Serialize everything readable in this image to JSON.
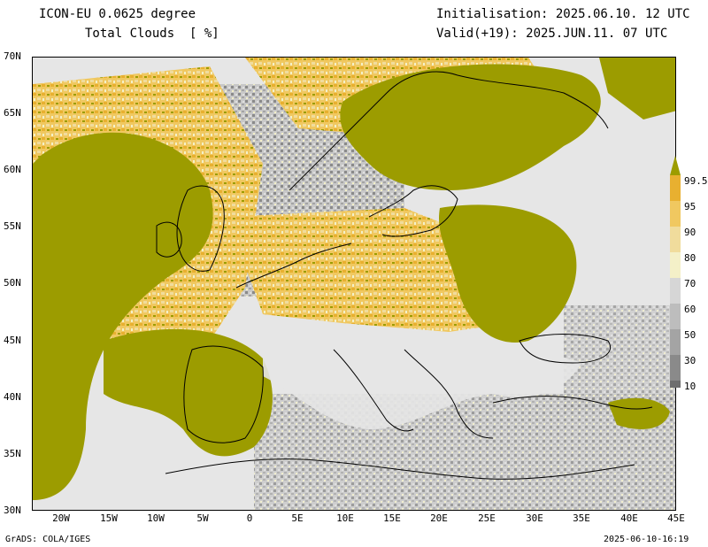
{
  "header": {
    "model_title": "ICON-EU 0.0625 degree",
    "variable_title": "Total Clouds  [ %]",
    "initialisation": "Initialisation: 2025.06.10. 12 UTC",
    "valid": "Valid(+19): 2025.JUN.11. 07 UTC"
  },
  "footer": {
    "credit": "GrADS: COLA/IGES",
    "timestamp": "2025-06-10-16:19"
  },
  "axes": {
    "lat_labels": [
      "70N",
      "65N",
      "60N",
      "55N",
      "50N",
      "45N",
      "40N",
      "35N",
      "30N"
    ],
    "lon_labels": [
      "20W",
      "15W",
      "10W",
      "5W",
      "0",
      "5E",
      "10E",
      "15E",
      "20E",
      "25E",
      "30E",
      "35E",
      "40E",
      "45E"
    ]
  },
  "colorbar": {
    "labels": [
      "99.5",
      "95",
      "90",
      "80",
      "70",
      "60",
      "50",
      "30",
      "10"
    ],
    "colors": [
      "#9c9c00",
      "#e8b030",
      "#f0c860",
      "#f0dc9c",
      "#f4f0c8",
      "#d6d6d6",
      "#bdbdbd",
      "#a4a4a4",
      "#8a8a8a",
      "#6e6e6e",
      "#e6e6e6"
    ]
  },
  "map": {
    "background_color": "#e6e6e6",
    "coastline_color": "#000000"
  }
}
